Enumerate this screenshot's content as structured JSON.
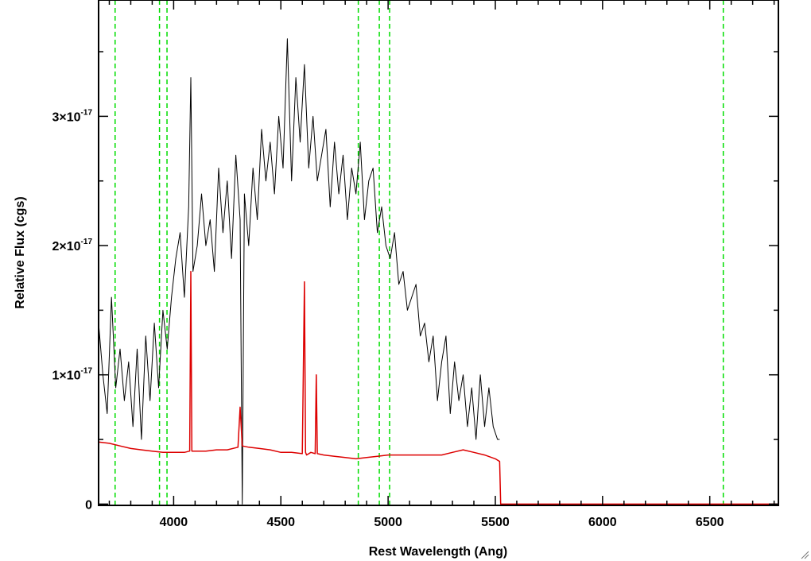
{
  "chart_data": {
    "type": "line",
    "title": "",
    "xlabel": "Rest Wavelength (Ang)",
    "ylabel": "Relative Flux (cgs)",
    "xlim": [
      3650,
      6820
    ],
    "ylim": [
      -1e-19,
      3.9e-17
    ],
    "x_ticks": [
      4000,
      4500,
      5000,
      5500,
      6000,
      6500
    ],
    "y_ticks": [
      {
        "value": 0,
        "mantissa": "0",
        "exponent": ""
      },
      {
        "value": 1e-17,
        "mantissa": "1×10",
        "exponent": "-17"
      },
      {
        "value": 2e-17,
        "mantissa": "2×10",
        "exponent": "-17"
      },
      {
        "value": 3e-17,
        "mantissa": "3×10",
        "exponent": "-17"
      }
    ],
    "grid": false,
    "legend": "none",
    "reference_lines": {
      "color": "#00dd00",
      "style": "dashed",
      "x": [
        3727,
        3934,
        3969,
        4861,
        4959,
        5007,
        6563
      ]
    },
    "series": [
      {
        "color": "#000000",
        "x": [
          3650,
          3670,
          3690,
          3710,
          3730,
          3750,
          3770,
          3790,
          3810,
          3830,
          3850,
          3870,
          3890,
          3910,
          3930,
          3950,
          3970,
          3990,
          4010,
          4030,
          4050,
          4070,
          4080,
          4090,
          4110,
          4130,
          4150,
          4170,
          4190,
          4210,
          4230,
          4250,
          4270,
          4290,
          4310,
          4320,
          4330,
          4350,
          4370,
          4390,
          4410,
          4430,
          4450,
          4470,
          4490,
          4510,
          4530,
          4550,
          4570,
          4590,
          4610,
          4630,
          4650,
          4670,
          4690,
          4710,
          4730,
          4750,
          4770,
          4790,
          4810,
          4830,
          4850,
          4870,
          4890,
          4910,
          4930,
          4950,
          4970,
          4990,
          5010,
          5030,
          5050,
          5070,
          5090,
          5110,
          5130,
          5150,
          5170,
          5190,
          5210,
          5230,
          5250,
          5270,
          5290,
          5310,
          5330,
          5350,
          5370,
          5390,
          5410,
          5430,
          5450,
          5470,
          5490,
          5510,
          5520
        ],
        "y": [
          1.4e-17,
          1e-17,
          7e-18,
          1.6e-17,
          9e-18,
          1.2e-17,
          8e-18,
          1.1e-17,
          6e-18,
          1.2e-17,
          5e-18,
          1.3e-17,
          8e-18,
          1.4e-17,
          9e-18,
          1.5e-17,
          1.2e-17,
          1.6e-17,
          1.9e-17,
          2.1e-17,
          1.6e-17,
          2.3e-17,
          3.3e-17,
          1.8e-17,
          2e-17,
          2.4e-17,
          2e-17,
          2.2e-17,
          1.8e-17,
          2.6e-17,
          2.1e-17,
          2.5e-17,
          1.9e-17,
          2.7e-17,
          2.2e-17,
          0.0,
          2.4e-17,
          2e-17,
          2.6e-17,
          2.2e-17,
          2.9e-17,
          2.5e-17,
          2.8e-17,
          2.4e-17,
          3e-17,
          2.6e-17,
          3.6e-17,
          2.5e-17,
          3.3e-17,
          2.8e-17,
          3.4e-17,
          2.6e-17,
          3e-17,
          2.5e-17,
          2.7e-17,
          2.9e-17,
          2.3e-17,
          2.8e-17,
          2.4e-17,
          2.7e-17,
          2.2e-17,
          2.6e-17,
          2.4e-17,
          2.8e-17,
          2.2e-17,
          2.5e-17,
          2.6e-17,
          2.1e-17,
          2.3e-17,
          2e-17,
          1.9e-17,
          2.1e-17,
          1.7e-17,
          1.8e-17,
          1.5e-17,
          1.6e-17,
          1.7e-17,
          1.3e-17,
          1.4e-17,
          1.1e-17,
          1.3e-17,
          8e-18,
          1.1e-17,
          1.3e-17,
          7e-18,
          1.1e-17,
          8e-18,
          1e-17,
          6e-18,
          9e-18,
          5e-18,
          1e-17,
          6e-18,
          9e-18,
          6e-18,
          5e-18,
          5e-18
        ]
      },
      {
        "color": "#dd0000",
        "x": [
          3650,
          3700,
          3750,
          3800,
          3850,
          3900,
          3950,
          4000,
          4050,
          4075,
          4080,
          4085,
          4100,
          4150,
          4200,
          4250,
          4300,
          4310,
          4320,
          4350,
          4400,
          4450,
          4500,
          4550,
          4600,
          4610,
          4615,
          4620,
          4640,
          4660,
          4665,
          4670,
          4700,
          4750,
          4800,
          4850,
          4900,
          4950,
          5000,
          5050,
          5100,
          5150,
          5200,
          5250,
          5300,
          5350,
          5400,
          5450,
          5500,
          5520,
          5525,
          5530,
          6000,
          6500,
          6820
        ],
        "y": [
          4.8e-18,
          4.7e-18,
          4.5e-18,
          4.3e-18,
          4.2e-18,
          4.1e-18,
          4e-18,
          4e-18,
          4e-18,
          4.1e-18,
          1.8e-17,
          4.1e-18,
          4.1e-18,
          4.1e-18,
          4.2e-18,
          4.2e-18,
          4.4e-18,
          7.5e-18,
          4.5e-18,
          4.4e-18,
          4.3e-18,
          4.2e-18,
          4e-18,
          4e-18,
          3.9e-18,
          1.72e-17,
          4e-18,
          3.8e-18,
          4e-18,
          3.9e-18,
          1e-17,
          3.9e-18,
          3.8e-18,
          3.7e-18,
          3.6e-18,
          3.5e-18,
          3.6e-18,
          3.7e-18,
          3.8e-18,
          3.8e-18,
          3.8e-18,
          3.8e-18,
          3.8e-18,
          3.8e-18,
          4e-18,
          4.2e-18,
          4e-18,
          3.8e-18,
          3.5e-18,
          3.3e-18,
          0.0,
          0.0,
          0.0,
          0.0,
          0.0
        ]
      }
    ]
  }
}
